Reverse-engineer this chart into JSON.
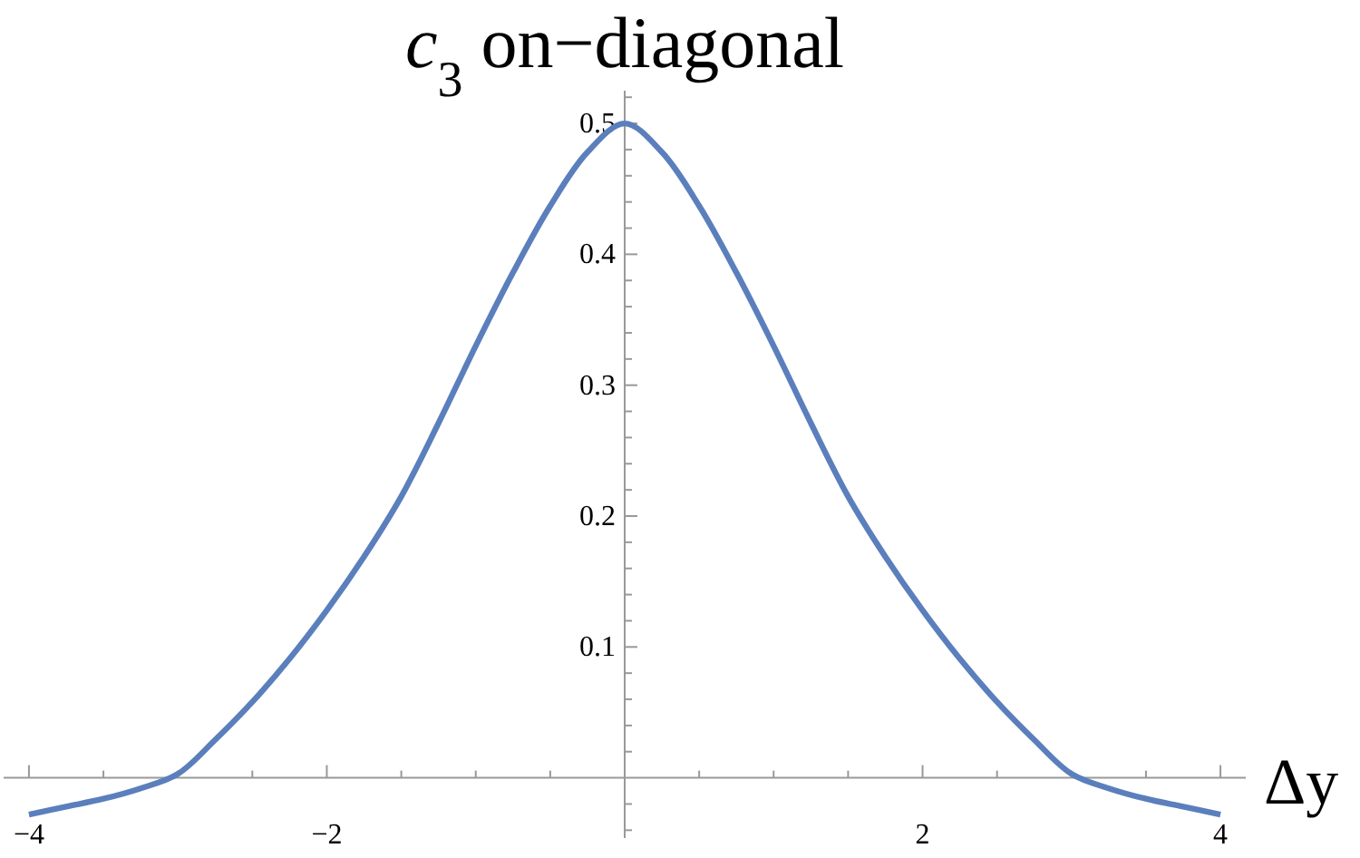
{
  "chart_data": {
    "type": "line",
    "title": "c$_{3}$ on−diagonal",
    "xlabel": "Δy",
    "x": [
      -4,
      -3.75,
      -3.5,
      -3.25,
      -3,
      -2.75,
      -2.5,
      -2.25,
      -2,
      -1.75,
      -1.5,
      -1.25,
      -1,
      -0.75,
      -0.5,
      -0.25,
      0,
      0.25,
      0.5,
      0.75,
      1,
      1.25,
      1.5,
      1.75,
      2,
      2.25,
      2.5,
      2.75,
      3,
      3.25,
      3.5,
      3.75,
      4
    ],
    "series": [
      {
        "color": "#5b7fbc",
        "values": [
          -0.028,
          -0.022,
          -0.016,
          -0.008,
          0.003,
          0.029,
          0.058,
          0.091,
          0.128,
          0.169,
          0.215,
          0.271,
          0.33,
          0.386,
          0.437,
          0.478,
          0.5,
          0.478,
          0.437,
          0.386,
          0.33,
          0.271,
          0.215,
          0.169,
          0.128,
          0.091,
          0.058,
          0.029,
          0.003,
          -0.008,
          -0.016,
          -0.022,
          -0.028
        ]
      }
    ],
    "xlim": [
      -4.17,
      4.17
    ],
    "ylim": [
      -0.046,
      0.525
    ],
    "xticks": [
      -4,
      {
        "value": -3.5,
        "label": null
      },
      {
        "value": -3,
        "label": null
      },
      {
        "value": -2.5,
        "label": null
      },
      -2,
      {
        "value": -1.5,
        "label": null
      },
      {
        "value": -1,
        "label": null
      },
      {
        "value": -0.5,
        "label": null
      },
      {
        "value": 0.5,
        "label": null
      },
      {
        "value": 1,
        "label": null
      },
      {
        "value": 1.5,
        "label": null
      },
      2,
      {
        "value": 2.5,
        "label": null
      },
      {
        "value": 3,
        "label": null
      },
      {
        "value": 3.5,
        "label": null
      },
      4
    ],
    "yticks": [
      {
        "value": -0.04,
        "label": null
      },
      {
        "value": -0.02,
        "label": null
      },
      {
        "value": 0.02,
        "label": null
      },
      {
        "value": 0.04,
        "label": null
      },
      {
        "value": 0.06,
        "label": null
      },
      {
        "value": 0.08,
        "label": null
      },
      0.1,
      {
        "value": 0.12,
        "label": null
      },
      {
        "value": 0.14,
        "label": null
      },
      {
        "value": 0.16,
        "label": null
      },
      {
        "value": 0.18,
        "label": null
      },
      0.2,
      {
        "value": 0.22,
        "label": null
      },
      {
        "value": 0.24,
        "label": null
      },
      {
        "value": 0.26,
        "label": null
      },
      {
        "value": 0.28,
        "label": null
      },
      0.3,
      {
        "value": 0.32,
        "label": null
      },
      {
        "value": 0.34,
        "label": null
      },
      {
        "value": 0.36,
        "label": null
      },
      {
        "value": 0.38,
        "label": null
      },
      0.4,
      {
        "value": 0.42,
        "label": null
      },
      {
        "value": 0.44,
        "label": null
      },
      {
        "value": 0.46,
        "label": null
      },
      {
        "value": 0.48,
        "label": null
      },
      0.5,
      {
        "value": 0.52,
        "label": null
      }
    ],
    "grid": false,
    "marker": "none",
    "line_style": "solid"
  }
}
